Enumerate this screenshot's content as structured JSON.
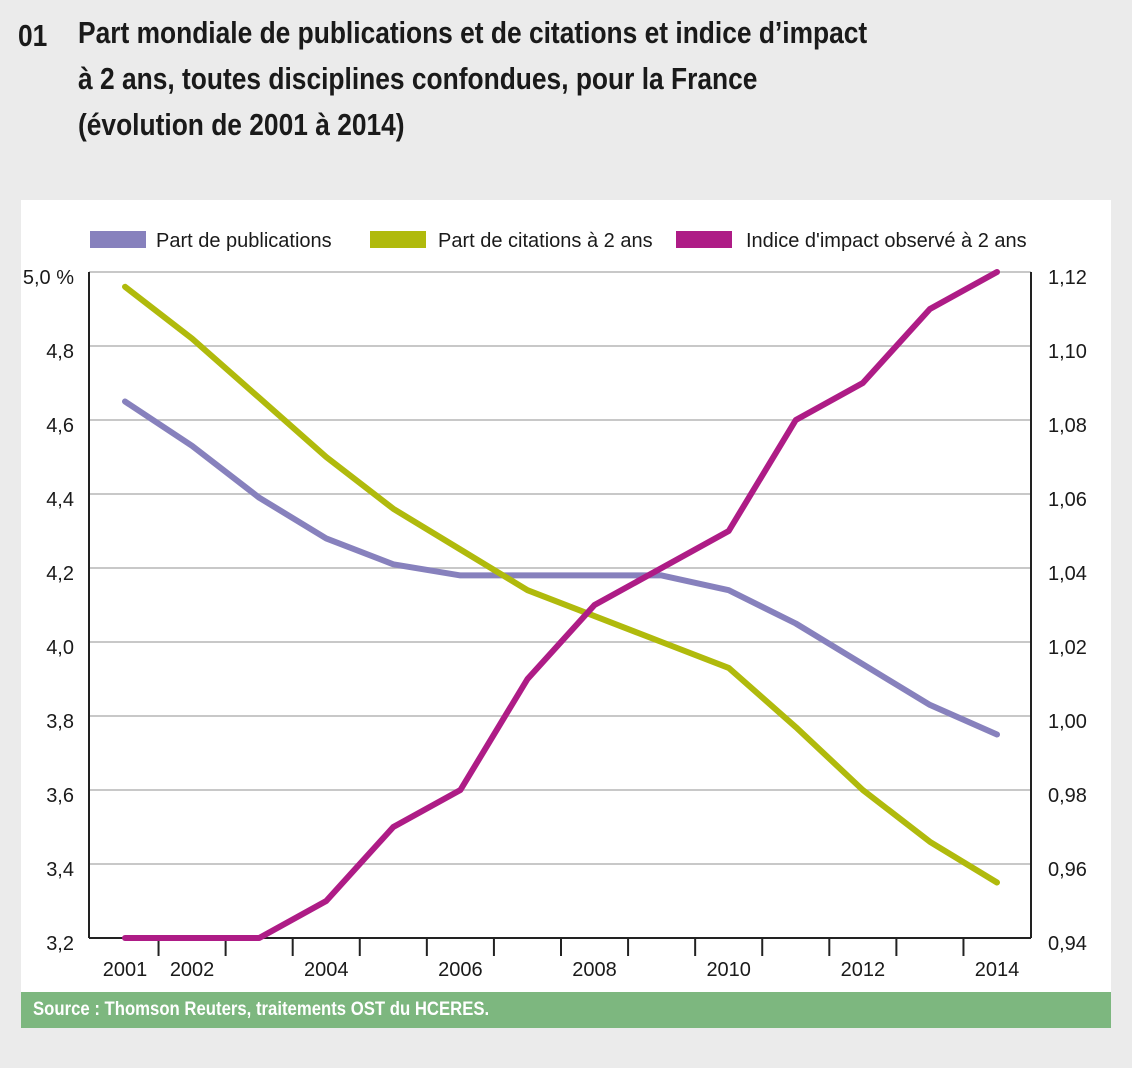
{
  "header": {
    "number": "01",
    "title_lines": [
      "Part mondiale de publications et de citations et indice d’impact",
      "à 2 ans, toutes disciplines confondues, pour la France",
      "(évolution de 2001 à 2014)"
    ]
  },
  "source": "Source : Thomson Reuters, traitements OST du HCERES.",
  "chart_data": {
    "type": "line",
    "title": "Part mondiale de publications et de citations et indice d’impact à 2 ans, toutes disciplines confondues, pour la France (évolution de 2001 à 2014)",
    "x": [
      2001,
      2002,
      2003,
      2004,
      2005,
      2006,
      2007,
      2008,
      2009,
      2010,
      2011,
      2012,
      2013,
      2014
    ],
    "x_tick_labels": [
      "2001",
      "2002",
      "",
      "2004",
      "",
      "2006",
      "",
      "2008",
      "",
      "2010",
      "",
      "2012",
      "",
      "2014"
    ],
    "grid": true,
    "legend_position": "top",
    "left_axis": {
      "label": "%",
      "ylim": [
        3.2,
        5.0
      ],
      "ticks": [
        3.2,
        3.4,
        3.6,
        3.8,
        4.0,
        4.2,
        4.4,
        4.6,
        4.8,
        5.0
      ],
      "tick_labels": [
        "3,2",
        "3,4",
        "3,6",
        "3,8",
        "4,0",
        "4,2",
        "4,4",
        "4,6",
        "4,8",
        "5,0 %"
      ]
    },
    "right_axis": {
      "ylim": [
        0.94,
        1.12
      ],
      "ticks": [
        0.94,
        0.96,
        0.98,
        1.0,
        1.02,
        1.04,
        1.06,
        1.08,
        1.1,
        1.12
      ],
      "tick_labels": [
        "0,94",
        "0,96",
        "0,98",
        "1,00",
        "1,02",
        "1,04",
        "1,06",
        "1,08",
        "1,10",
        "1,12"
      ]
    },
    "series": [
      {
        "name": "Part de publications",
        "axis": "left",
        "color": "#8781bd",
        "values": [
          4.65,
          4.53,
          4.39,
          4.28,
          4.21,
          4.18,
          4.18,
          4.18,
          4.18,
          4.14,
          4.05,
          3.94,
          3.83,
          3.75
        ]
      },
      {
        "name": "Part de citations à 2 ans",
        "axis": "left",
        "color": "#b0ba0c",
        "values": [
          4.96,
          4.82,
          4.66,
          4.5,
          4.36,
          4.25,
          4.14,
          4.07,
          4.0,
          3.93,
          3.77,
          3.6,
          3.46,
          3.35
        ]
      },
      {
        "name": "Indice d'impact observé à 2 ans",
        "axis": "right",
        "color": "#ae1c86",
        "values": [
          0.94,
          0.94,
          0.94,
          0.95,
          0.97,
          0.98,
          1.01,
          1.03,
          1.04,
          1.05,
          1.08,
          1.09,
          1.11,
          1.12
        ]
      }
    ]
  }
}
